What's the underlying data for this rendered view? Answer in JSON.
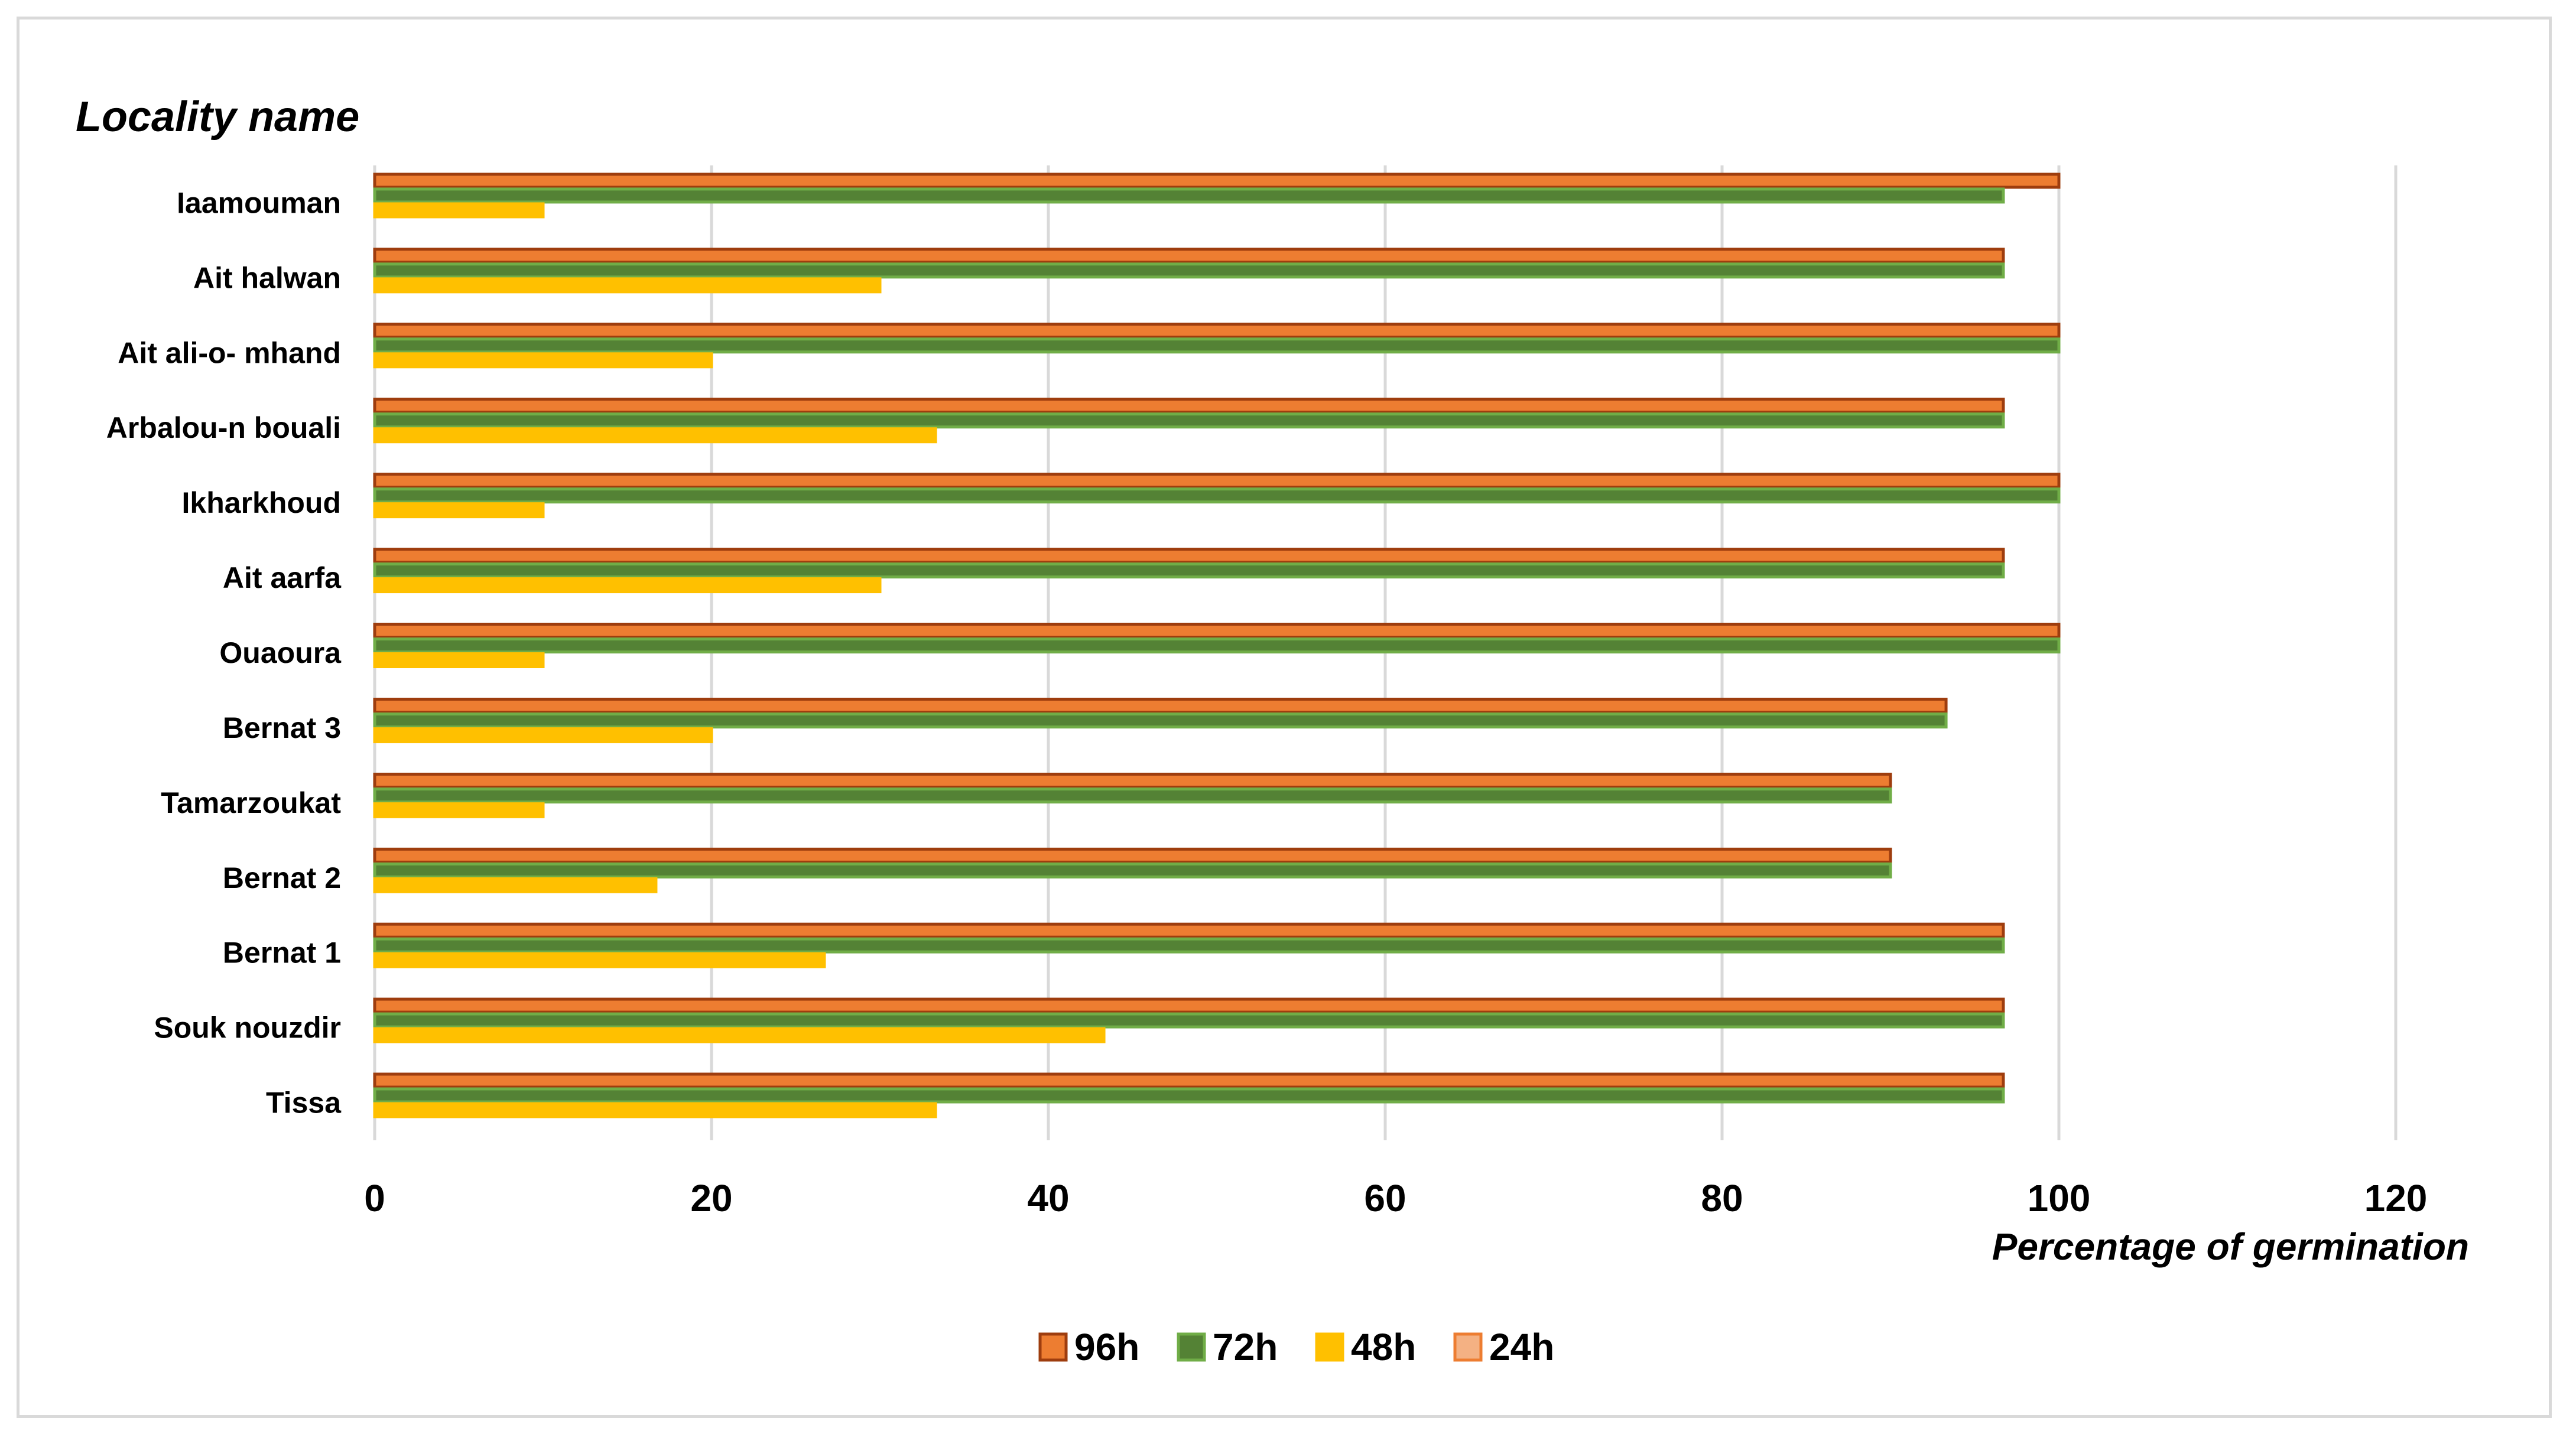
{
  "chart_data": {
    "type": "bar",
    "orientation": "horizontal",
    "title": "Locality name",
    "xlabel": "Percentage of germination",
    "xlim": [
      0,
      120
    ],
    "xticks": [
      0,
      20,
      40,
      60,
      80,
      100,
      120
    ],
    "grid": "vertical",
    "legend_position": "bottom",
    "categories": [
      "Iaamouman",
      "Ait halwan",
      "Ait ali-o- mhand",
      "Arbalou-n bouali",
      "Ikharkhoud",
      "Ait aarfa",
      "Ouaoura",
      "Bernat 3",
      "Tamarzoukat",
      "Bernat 2",
      "Bernat 1",
      "Souk nouzdir",
      "Tissa"
    ],
    "series": [
      {
        "name": "96h",
        "color": "#ED7D31",
        "border": "#9E3D0E",
        "values": [
          100,
          96.7,
          100,
          96.7,
          100,
          96.7,
          100,
          93.3,
          90,
          90,
          96.7,
          96.7,
          96.7
        ]
      },
      {
        "name": "72h",
        "color": "#548235",
        "border": "#70AD47",
        "values": [
          96.7,
          96.7,
          100,
          96.7,
          100,
          96.7,
          100,
          93.3,
          90,
          90,
          96.7,
          96.7,
          96.7
        ]
      },
      {
        "name": "48h",
        "color": "#FFC000",
        "border": "#FFC000",
        "values": [
          10,
          30,
          20,
          33.3,
          10,
          30,
          10,
          20,
          10,
          16.7,
          26.7,
          43.3,
          33.3
        ]
      },
      {
        "name": "24h",
        "color": "#F4B183",
        "border": "#ED7D31",
        "values": [
          0,
          0,
          0,
          0,
          0,
          0,
          0,
          0,
          0,
          0,
          0,
          0,
          0
        ]
      }
    ]
  }
}
